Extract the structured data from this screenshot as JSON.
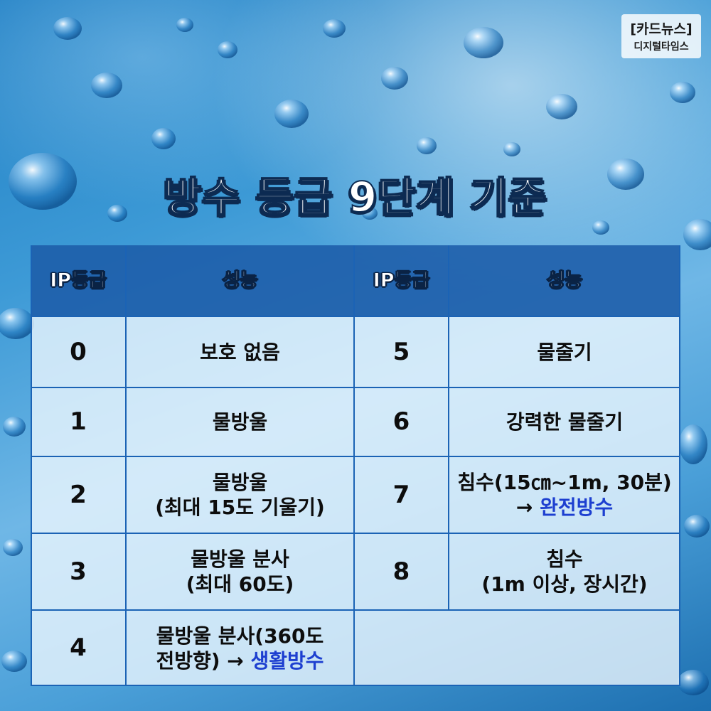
{
  "badge": {
    "line1": "[카드뉴스]",
    "line2": "디지털타임스"
  },
  "title": "방수 등급 9단계 기준",
  "table": {
    "headers": [
      "IP등급",
      "성능",
      "IP등급",
      "성능"
    ],
    "left_rows": [
      {
        "grade": "0",
        "lines": [
          "보호 없음"
        ],
        "accent": ""
      },
      {
        "grade": "1",
        "lines": [
          "물방울"
        ],
        "accent": ""
      },
      {
        "grade": "2",
        "lines": [
          "물방울",
          "(최대 15도 기울기)"
        ],
        "accent": ""
      },
      {
        "grade": "3",
        "lines": [
          "물방울 분사",
          "(최대 60도)"
        ],
        "accent": ""
      },
      {
        "grade": "4",
        "lines": [
          "물방울 분사(360도",
          "전방향) → "
        ],
        "accent": "생활방수"
      }
    ],
    "right_rows": [
      {
        "grade": "5",
        "lines": [
          "물줄기"
        ],
        "accent": ""
      },
      {
        "grade": "6",
        "lines": [
          "강력한 물줄기"
        ],
        "accent": ""
      },
      {
        "grade": "7",
        "lines": [
          "침수(15㎝~1m, 30분)",
          "→ "
        ],
        "accent": "완전방수"
      },
      {
        "grade": "8",
        "lines": [
          "침수",
          "(1m 이상, 장시간)"
        ],
        "accent": ""
      }
    ]
  },
  "colors": {
    "header_bg": "#1c5ca8",
    "grid_line": "#1b63b5",
    "accent_text": "#1d3fd0",
    "background": "#3d9ad6"
  }
}
